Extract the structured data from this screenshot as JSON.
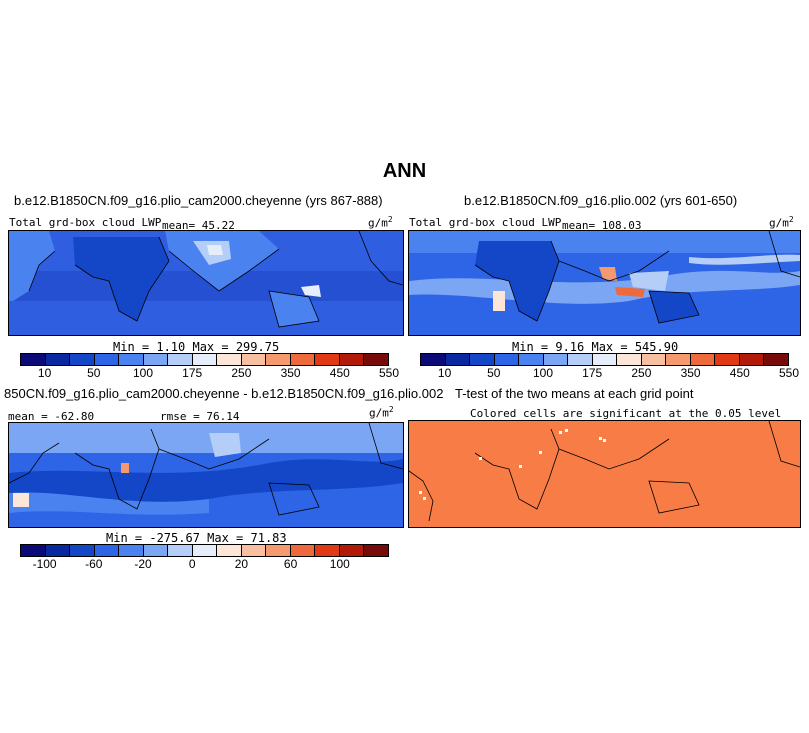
{
  "figure_title": "ANN",
  "panels": {
    "top_left": {
      "title": "b.e12.B1850CN.f09_g16.plio_cam2000.cheyenne (yrs 867-888)",
      "variable": "Total grd-box cloud LWP",
      "mean_text": "mean=  45.22",
      "units": "g/m",
      "units_sup": "2",
      "minmax_text": "Min =    1.10  Max =  299.75"
    },
    "top_right": {
      "title": "b.e12.B1850CN.f09_g16.plio.002 (yrs 601-650)",
      "variable": "Total grd-box cloud LWP",
      "mean_text": "mean= 108.03",
      "units": "g/m",
      "units_sup": "2",
      "minmax_text": "Min =    9.16  Max =  545.90"
    },
    "bottom_left": {
      "title": "850CN.f09_g16.plio_cam2000.cheyenne - b.e12.B1850CN.f09_g16.plio.002",
      "mean_text": "mean = -62.80",
      "rmse_text": "rmse =  76.14",
      "units": "g/m",
      "units_sup": "2",
      "minmax_text": "Min = -275.67  Max =   71.83"
    },
    "bottom_right": {
      "title": "T-test of the two means at each grid point",
      "subtitle": "Colored cells are significant at the 0.05 level"
    }
  },
  "colorbars": {
    "absolute": {
      "colors": [
        "#0a0a78",
        "#0a28a0",
        "#1446c8",
        "#2e64e6",
        "#4a82f0",
        "#7aa6f4",
        "#b4cef8",
        "#e6eefc",
        "#fce6d8",
        "#f8c0a0",
        "#f49a6e",
        "#ee6a3c",
        "#e03a14",
        "#b41a0a",
        "#780a0a"
      ],
      "labels": [
        "10",
        "50",
        "100",
        "175",
        "250",
        "350",
        "450",
        "550"
      ]
    },
    "difference": {
      "colors": [
        "#0a0a78",
        "#0a28a0",
        "#1446c8",
        "#2e64e6",
        "#4a82f0",
        "#7aa6f4",
        "#b4cef8",
        "#e6eefc",
        "#fce6d8",
        "#f8c0a0",
        "#f49a6e",
        "#ee6a3c",
        "#e03a14",
        "#b41a0a",
        "#780a0a"
      ],
      "labels": [
        "-100",
        "-60",
        "-20",
        "0",
        "20",
        "60",
        "100"
      ]
    }
  },
  "colors": {
    "ocean_base": "#2f5fe0",
    "ttest_fill": "#f87c46"
  }
}
